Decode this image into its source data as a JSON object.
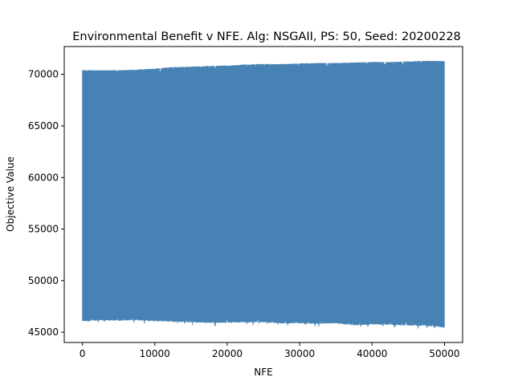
{
  "chart_data": {
    "type": "area",
    "title": "Environmental Benefit v NFE. Alg: NSGAII, PS: 50, Seed: 20200228",
    "xlabel": "NFE",
    "ylabel": "Objective Value",
    "xlim": [
      -2500,
      52500
    ],
    "ylim": [
      44000,
      72700
    ],
    "xticks": [
      0,
      10000,
      20000,
      30000,
      40000,
      50000
    ],
    "yticks": [
      45000,
      50000,
      55000,
      60000,
      65000,
      70000
    ],
    "grid": false,
    "series": [
      {
        "color": "#4682b4",
        "x": [
          0,
          2500,
          5000,
          7500,
          10000,
          12500,
          15000,
          17500,
          20000,
          22500,
          25000,
          27500,
          30000,
          32500,
          35000,
          37500,
          40000,
          42500,
          45000,
          47500,
          50000
        ],
        "upper": [
          70400,
          70400,
          70400,
          70450,
          70550,
          70700,
          70750,
          70800,
          70850,
          70950,
          71000,
          71000,
          71050,
          71100,
          71100,
          71150,
          71200,
          71200,
          71250,
          71300,
          71300
        ],
        "lower": [
          46100,
          46200,
          46150,
          46200,
          46100,
          46050,
          46000,
          45950,
          45950,
          46000,
          46000,
          45900,
          45900,
          45850,
          45900,
          45700,
          45800,
          45750,
          45700,
          45650,
          45500
        ]
      }
    ]
  }
}
